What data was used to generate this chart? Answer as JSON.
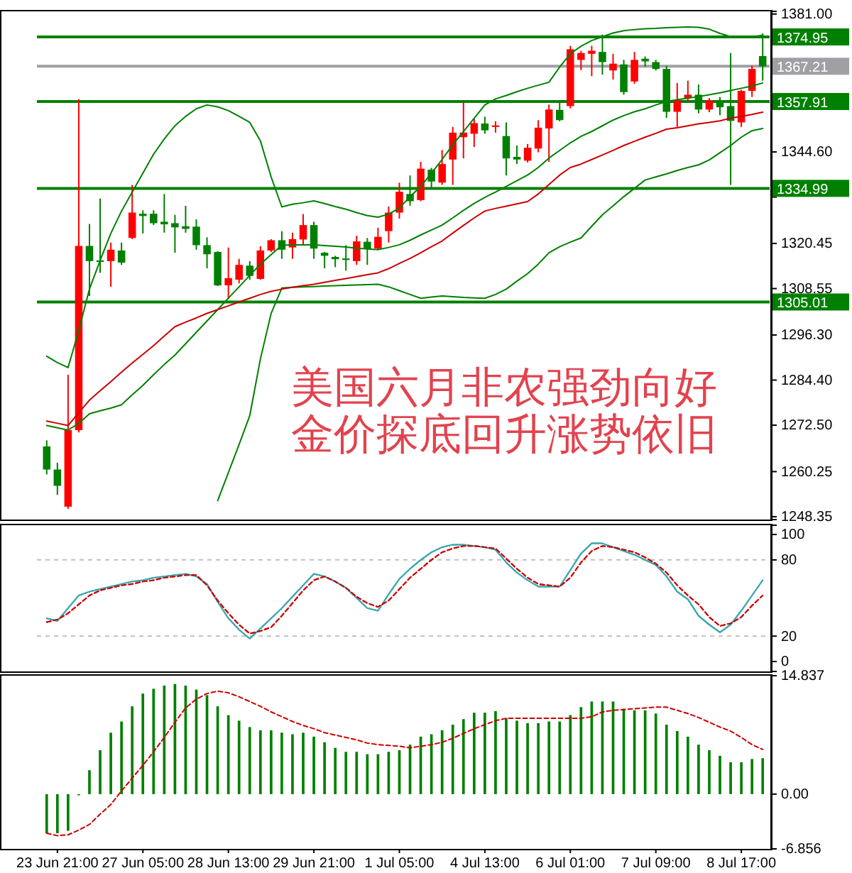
{
  "chart_data": [
    {
      "type": "candlestick",
      "tick_labels": "y",
      "categories": [
        null,
        null,
        null,
        null,
        null,
        null,
        null,
        null,
        null,
        null,
        null,
        null,
        null,
        null,
        null,
        null,
        null,
        null,
        null,
        null,
        null,
        null,
        null,
        null,
        null,
        null,
        null,
        null,
        null,
        null,
        null,
        null,
        null,
        null,
        null,
        null,
        null,
        null,
        null,
        null,
        null,
        null,
        null,
        null,
        null,
        null,
        null,
        null,
        null,
        null,
        null,
        null,
        null,
        null,
        null,
        null,
        null,
        null,
        null,
        null,
        null,
        null,
        null,
        null,
        null,
        null,
        null,
        null
      ],
      "ohlc": [
        [
          1266.9,
          1268.5,
          1259.5,
          1260.8
        ],
        [
          1260.8,
          1262.6,
          1254.1,
          1256.5
        ],
        [
          1251.0,
          1285.8,
          1250.4,
          1271.2
        ],
        [
          1271.2,
          1358.5,
          1270.6,
          1319.8
        ],
        [
          1319.8,
          1325.6,
          1306.6,
          1315.8
        ],
        [
          1316.0,
          1332.3,
          1312.7,
          1315.6
        ],
        [
          1315.8,
          1320.7,
          1309.0,
          1318.8
        ],
        [
          1318.6,
          1320.7,
          1314.8,
          1315.4
        ],
        [
          1321.9,
          1335.9,
          1321.6,
          1328.6
        ],
        [
          1328.3,
          1329.2,
          1323.1,
          1327.7
        ],
        [
          1328.3,
          1329.2,
          1325.3,
          1325.8
        ],
        [
          1326.2,
          1333.5,
          1323.3,
          1325.5
        ],
        [
          1325.8,
          1328.0,
          1318.0,
          1324.7
        ],
        [
          1325.0,
          1330.4,
          1323.3,
          1324.3
        ],
        [
          1324.9,
          1326.8,
          1318.8,
          1320.0
        ],
        [
          1320.0,
          1322.1,
          1313.9,
          1317.6
        ],
        [
          1318.2,
          1318.4,
          1309.2,
          1309.4
        ],
        [
          1309.4,
          1319.4,
          1305.8,
          1311.3
        ],
        [
          1310.9,
          1316.4,
          1309.9,
          1314.8
        ],
        [
          1314.6,
          1315.8,
          1310.9,
          1311.9
        ],
        [
          1311.1,
          1319.7,
          1310.9,
          1318.6
        ],
        [
          1318.6,
          1321.6,
          1318.2,
          1321.3
        ],
        [
          1321.3,
          1323.7,
          1316.4,
          1318.8
        ],
        [
          1319.4,
          1323.3,
          1316.4,
          1321.6
        ],
        [
          1321.5,
          1328.2,
          1320.0,
          1325.3
        ],
        [
          1325.3,
          1326.2,
          1316.4,
          1319.1
        ],
        [
          1318.0,
          1318.2,
          1313.9,
          1317.2
        ],
        [
          1316.9,
          1317.2,
          1314.2,
          1316.3
        ],
        [
          1316.5,
          1320.0,
          1313.3,
          1316.1
        ],
        [
          1315.8,
          1322.5,
          1314.8,
          1321.0
        ],
        [
          1320.9,
          1321.9,
          1314.8,
          1319.1
        ],
        [
          1319.1,
          1324.6,
          1318.8,
          1322.2
        ],
        [
          1323.7,
          1330.2,
          1320.7,
          1328.6
        ],
        [
          1328.6,
          1336.5,
          1327.0,
          1334.1
        ],
        [
          1333.5,
          1338.4,
          1330.4,
          1331.6
        ],
        [
          1331.9,
          1342.0,
          1331.6,
          1340.2
        ],
        [
          1339.9,
          1340.4,
          1334.7,
          1336.8
        ],
        [
          1336.5,
          1345.1,
          1335.9,
          1341.4
        ],
        [
          1342.6,
          1351.2,
          1335.9,
          1349.7
        ],
        [
          1348.5,
          1357.9,
          1342.9,
          1349.7
        ],
        [
          1349.4,
          1353.4,
          1345.9,
          1352.2
        ],
        [
          1352.1,
          1353.9,
          1349.4,
          1350.3
        ],
        [
          1351.2,
          1352.7,
          1349.7,
          1351.6
        ],
        [
          1348.8,
          1352.4,
          1338.4,
          1342.9
        ],
        [
          1343.3,
          1346.3,
          1341.4,
          1342.6
        ],
        [
          1342.3,
          1346.7,
          1341.8,
          1345.7
        ],
        [
          1345.5,
          1353.0,
          1344.5,
          1351.0
        ],
        [
          1350.8,
          1357.1,
          1342.0,
          1355.8
        ],
        [
          1355.7,
          1357.9,
          1352.7,
          1353.0
        ],
        [
          1356.7,
          1372.6,
          1356.1,
          1371.7
        ],
        [
          1368.9,
          1371.3,
          1366.2,
          1370.7
        ],
        [
          1370.5,
          1372.6,
          1364.6,
          1371.3
        ],
        [
          1371.0,
          1375.6,
          1365.0,
          1368.3
        ],
        [
          1366.1,
          1370.5,
          1363.7,
          1367.9
        ],
        [
          1367.7,
          1368.9,
          1359.7,
          1360.4
        ],
        [
          1363.2,
          1371.0,
          1362.6,
          1368.9
        ],
        [
          1369.2,
          1369.8,
          1367.1,
          1368.5
        ],
        [
          1368.3,
          1368.9,
          1366.1,
          1366.5
        ],
        [
          1366.5,
          1367.3,
          1353.6,
          1355.2
        ],
        [
          1355.2,
          1362.8,
          1350.9,
          1358.2
        ],
        [
          1358.8,
          1363.4,
          1357.9,
          1359.7
        ],
        [
          1359.7,
          1362.4,
          1354.8,
          1355.8
        ],
        [
          1355.8,
          1358.8,
          1355.1,
          1358.2
        ],
        [
          1358.3,
          1359.1,
          1354.3,
          1356.4
        ],
        [
          1356.7,
          1370.7,
          1335.9,
          1352.8
        ],
        [
          1352.4,
          1361.0,
          1351.2,
          1360.7
        ],
        [
          1360.7,
          1367.4,
          1359.1,
          1366.5
        ],
        [
          1369.9,
          1375.9,
          1363.4,
          1367.21
        ]
      ],
      "series": [
        {
          "type": "line",
          "color": "#008000",
          "values": [
            1290.7,
            1289,
            1287.7,
            1297.5,
            1308.4,
            1316,
            1323.1,
            1329,
            1334,
            1339,
            1344,
            1348,
            1351.5,
            1354,
            1356,
            1357,
            1356.5,
            1355.5,
            1354,
            1352.4,
            1347.5,
            1338,
            1330.1,
            1330.8,
            1331.2,
            1331.7,
            1331,
            1330.2,
            1329.5,
            1328.6,
            1327.8,
            1327.4,
            1328.2,
            1329.8,
            1332.8,
            1335.5,
            1339,
            1342.6,
            1346.5,
            1350,
            1353.5,
            1357,
            1358.6,
            1359.5,
            1360.5,
            1361.4,
            1362.2,
            1363,
            1367,
            1370.5,
            1372.5,
            1374,
            1375,
            1376,
            1376.6,
            1376.9,
            1377.1,
            1377.2,
            1377.4,
            1377.5,
            1377.6,
            1377.5,
            1377,
            1375.9,
            1375,
            1374.8,
            1375,
            1375.4
          ]
        },
        {
          "type": "line",
          "color": "#008000",
          "values": [
            1272.4,
            1271.8,
            1271.2,
            1273,
            1275.5,
            1276.3,
            1277,
            1277.9,
            1280.5,
            1283,
            1285.8,
            1288.5,
            1291,
            1294,
            1297,
            1300,
            1303,
            1306,
            1309,
            1312,
            1315,
            1317.5,
            1320,
            1320.1,
            1320.1,
            1320.1,
            1319.9,
            1319.7,
            1319.5,
            1319.2,
            1319,
            1318.8,
            1319.4,
            1320.1,
            1321.3,
            1322.7,
            1324,
            1325.3,
            1327.2,
            1329.2,
            1331,
            1332.6,
            1334,
            1335.5,
            1337,
            1338.5,
            1340.5,
            1343,
            1345,
            1347,
            1348.7,
            1350,
            1351.5,
            1353,
            1354.2,
            1355.2,
            1356,
            1357,
            1357.9,
            1358.4,
            1358.8,
            1359.2,
            1359.7,
            1360.2,
            1360.8,
            1361.4,
            1362,
            1362.8
          ]
        },
        {
          "type": "line",
          "color": "#008000",
          "values": [
            null,
            null,
            null,
            null,
            null,
            null,
            null,
            null,
            null,
            null,
            null,
            null,
            null,
            null,
            null,
            null,
            1252.6,
            1260,
            1267.4,
            1275,
            1290,
            1302,
            1308.7,
            1308.9,
            1309,
            1309.1,
            1309.2,
            1309.3,
            1309.4,
            1309.5,
            1309.6,
            1309.7,
            1309,
            1308,
            1307,
            1306,
            1306.3,
            1306.6,
            1306.4,
            1306.2,
            1306.1,
            1306,
            1307,
            1308.4,
            1310.5,
            1312.5,
            1315,
            1318,
            1319.6,
            1320.8,
            1321.9,
            1325,
            1328,
            1330.4,
            1332.8,
            1335,
            1337.2,
            1338,
            1338.8,
            1339.7,
            1340.5,
            1341.2,
            1342.5,
            1344.4,
            1346.3,
            1348.5,
            1350.2,
            1350.8
          ]
        },
        {
          "type": "line",
          "color": "#cc0000",
          "values": [
            1273.6,
            1273,
            1272.4,
            1275.8,
            1279.1,
            1281.6,
            1284,
            1286.5,
            1288.9,
            1291.2,
            1293.5,
            1296,
            1298.5,
            1299.7,
            1300.8,
            1302,
            1303,
            1304,
            1305,
            1306,
            1307,
            1307.8,
            1308.4,
            1308.9,
            1309.3,
            1309.7,
            1310.2,
            1310.7,
            1311.2,
            1311.7,
            1312.2,
            1312.7,
            1313.8,
            1315.2,
            1316.5,
            1318,
            1319.6,
            1321.1,
            1323.2,
            1325.2,
            1327.2,
            1329,
            1329.7,
            1330.3,
            1330.9,
            1331.5,
            1333.5,
            1336,
            1338.5,
            1340.5,
            1341.4,
            1342.6,
            1343.8,
            1345,
            1346.3,
            1347.4,
            1348.5,
            1349.5,
            1350.6,
            1351,
            1351.5,
            1352,
            1352.4,
            1352.8,
            1353.5,
            1354,
            1354.5,
            1355.1
          ]
        }
      ],
      "ylim": [
        1247.6,
        1381.7
      ],
      "yticks": [
        {
          "value": 1381,
          "label": "1381.00"
        },
        {
          "value": 1344.6,
          "label": "1344.60"
        },
        {
          "value": 1332.7,
          "label": null
        },
        1320.45,
        1308.55,
        {
          "value": 1296.3,
          "label": "1296.30"
        },
        {
          "value": 1284.4,
          "label": "1284.40"
        },
        {
          "value": 1272.5,
          "label": "1272.50"
        },
        1260.25,
        1248.35
      ],
      "ref_lines": [
        {
          "axis": "y",
          "value": 1374.95,
          "label": "1374.95",
          "color": "#008000"
        },
        {
          "axis": "y",
          "value": 1367.21,
          "label": "1367.21",
          "color": "#a0a0a4"
        },
        {
          "axis": "y",
          "value": 1357.91,
          "label": "1357.91",
          "color": "#008000"
        },
        {
          "axis": "y",
          "value": 1334.99,
          "label": "1334.99",
          "color": "#008000"
        },
        {
          "axis": "y",
          "value": 1305.01,
          "label": "1305.01",
          "color": "#008000"
        }
      ],
      "annotations": [
        "美国六月非农强劲向好",
        "金价探底回升涨势依旧"
      ]
    },
    {
      "type": "line",
      "tick_labels": "y",
      "categories": [
        null,
        null,
        null,
        null,
        null,
        null,
        null,
        null,
        null,
        null,
        null,
        null,
        null,
        null,
        null,
        null,
        null,
        null,
        null,
        null,
        null,
        null,
        null,
        null,
        null,
        null,
        null,
        null,
        null,
        null,
        null,
        null,
        null,
        null,
        null,
        null,
        null,
        null,
        null,
        null,
        null,
        null,
        null,
        null,
        null,
        null,
        null,
        null,
        null,
        null,
        null,
        null,
        null,
        null,
        null,
        null,
        null,
        null,
        null,
        null,
        null,
        null,
        null,
        null,
        null,
        null,
        null,
        null
      ],
      "series": [
        {
          "color": "#3aa6b0",
          "line_style": "solid",
          "values": [
            34,
            32,
            42,
            52,
            55,
            57,
            59,
            61,
            63,
            64,
            66,
            67,
            68,
            69,
            67,
            61,
            47,
            34,
            25,
            18,
            26,
            34,
            42,
            51,
            60,
            69,
            67,
            63,
            58,
            50,
            42,
            40,
            53,
            65,
            73,
            80,
            86,
            90,
            92,
            92,
            91,
            90,
            88,
            78,
            70,
            64,
            59,
            59,
            59,
            72,
            85,
            93,
            93,
            90,
            87,
            84,
            80,
            76,
            67,
            55,
            49,
            36,
            29,
            23,
            29,
            40,
            52,
            64
          ]
        },
        {
          "color": "#cc0000",
          "line_style": "dashed",
          "values": [
            31,
            33,
            38,
            45,
            52,
            56,
            58,
            60,
            61,
            63,
            64,
            66,
            67,
            68,
            68,
            60,
            48,
            38,
            29,
            22,
            24,
            27,
            36,
            46,
            56,
            64,
            67,
            63,
            58,
            51,
            46,
            43,
            48,
            57,
            66,
            73,
            80,
            86,
            89,
            91,
            91,
            90,
            89,
            81,
            73,
            66,
            61,
            60,
            59,
            66,
            78,
            87,
            91,
            90,
            88,
            86,
            82,
            77,
            70,
            60,
            52,
            45,
            35,
            28,
            30,
            35,
            44,
            52
          ]
        }
      ],
      "ylim": [
        -7.8,
        107.3
      ],
      "yticks": [
        100,
        80,
        20,
        0
      ],
      "ref_lines": [
        {
          "axis": "y",
          "value": 80,
          "color": "#c0c0c0",
          "line_style": "dashed"
        },
        {
          "axis": "y",
          "value": 20,
          "color": "#c0c0c0",
          "line_style": "dashed"
        }
      ]
    },
    {
      "type": "bar",
      "categories": [
        null,
        "23 Jun 21:00",
        null,
        null,
        null,
        null,
        null,
        null,
        null,
        "27 Jun 05:00",
        null,
        null,
        null,
        null,
        null,
        null,
        null,
        "28 Jun 13:00",
        null,
        null,
        null,
        null,
        null,
        null,
        null,
        "29 Jun 21:00",
        null,
        null,
        null,
        null,
        null,
        null,
        null,
        "1 Jul 05:00",
        null,
        null,
        null,
        null,
        null,
        null,
        null,
        "4 Jul 13:00",
        null,
        null,
        null,
        null,
        null,
        null,
        null,
        "6 Jul 01:00",
        null,
        null,
        null,
        null,
        null,
        null,
        null,
        "7 Jul 09:00",
        null,
        null,
        null,
        null,
        null,
        null,
        null,
        "8 Jul 17:00",
        null,
        null
      ],
      "series": [
        {
          "type": "bar",
          "color": "#008000",
          "values": [
            -4.9,
            -4.9,
            -4.6,
            -0.1,
            3.0,
            5.5,
            7.7,
            9.1,
            11.0,
            12.6,
            13.2,
            13.6,
            13.8,
            13.6,
            13.1,
            12.4,
            11.0,
            9.9,
            9.2,
            8.4,
            8.0,
            8.0,
            7.7,
            7.5,
            7.7,
            7.2,
            6.5,
            5.8,
            5.3,
            5.3,
            5.0,
            5.0,
            5.3,
            5.5,
            6.2,
            7.2,
            7.5,
            8.0,
            8.7,
            9.4,
            10.2,
            10.2,
            10.4,
            9.5,
            9.2,
            8.9,
            8.9,
            9.1,
            9.1,
            9.9,
            10.9,
            11.6,
            11.6,
            11.6,
            10.7,
            10.5,
            10.5,
            10.1,
            8.7,
            7.9,
            7.2,
            6.2,
            5.5,
            4.8,
            4.0,
            4.0,
            4.4,
            4.5
          ]
        },
        {
          "type": "line",
          "color": "#cc0000",
          "line_style": "dashed",
          "values": [
            -4.9,
            -5.2,
            -5.1,
            -4.5,
            -3.8,
            -2.5,
            -1.3,
            0.4,
            2,
            3.6,
            5.3,
            7.1,
            9,
            10.8,
            11.9,
            12.6,
            12.9,
            12.7,
            12.2,
            11.6,
            11,
            10.3,
            9.7,
            9.1,
            8.6,
            8.2,
            7.7,
            7.4,
            7.1,
            6.8,
            6.4,
            6.2,
            6.1,
            6,
            5.8,
            6,
            6.2,
            6.5,
            7,
            7.6,
            8.2,
            8.7,
            9.2,
            9.5,
            9.5,
            9.5,
            9.5,
            9.5,
            9.5,
            9.5,
            9.5,
            9.7,
            10.3,
            10.5,
            10.6,
            10.7,
            10.8,
            10.9,
            10.9,
            10.5,
            10.1,
            9.6,
            9,
            8.4,
            7.9,
            7.1,
            6.2,
            5.6
          ]
        }
      ],
      "ylim": [
        -6.856,
        14.837
      ],
      "yticks": [
        14.837,
        {
          "value": 0,
          "label": "0.00"
        },
        -6.856
      ]
    }
  ]
}
